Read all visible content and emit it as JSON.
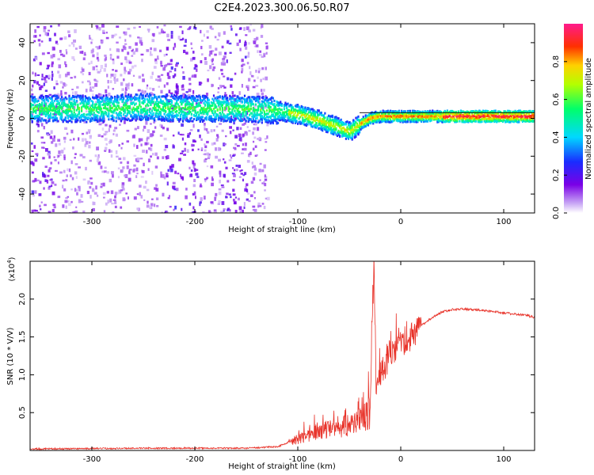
{
  "title": "C2E4.2023.300.06.50.R07",
  "chart_data": [
    {
      "type": "heatmap",
      "xlabel": "Height of straight line (km)",
      "ylabel": "Frequency (Hz)",
      "xlim": [
        -360,
        130
      ],
      "ylim": [
        -50,
        50
      ],
      "xticks": [
        -300,
        -200,
        -100,
        0,
        100
      ],
      "xtick_labels": [
        "-300",
        "-200",
        "-100",
        "0",
        "100"
      ],
      "yticks": [
        40,
        20,
        0,
        -20,
        -40
      ],
      "ytick_labels": [
        "40",
        "20",
        "0",
        "-20",
        "-40"
      ],
      "colorbar": {
        "label": "Normalized spectral amplitude",
        "range": [
          0,
          1
        ],
        "ticks": [
          0.0,
          0.2,
          0.4,
          0.6,
          0.8
        ],
        "tick_labels": [
          "0.0",
          "0.2",
          "0.4",
          "0.6",
          "0.8"
        ],
        "colormap": "rainbow (white-violet-blue-cyan-green-yellow-red-pink)"
      },
      "ridge_center_hz": {
        "x": [
          -360,
          -300,
          -250,
          -200,
          -150,
          -120,
          -100,
          -80,
          -60,
          -50,
          -40,
          -30,
          -20,
          0,
          50,
          100,
          130
        ],
        "y": [
          5,
          5,
          6,
          5,
          5,
          4,
          2,
          -1,
          -5,
          -7,
          -3,
          0,
          1,
          1,
          1,
          1,
          1
        ]
      }
    },
    {
      "type": "line",
      "xlabel": "Height of straight line (km)",
      "ylabel": "SNR (10 * V/V)",
      "yscale_label": "(x10",
      "yscale_exp": "4",
      "yscale_close": ")",
      "xlim": [
        -360,
        130
      ],
      "ylim": [
        0,
        2.5
      ],
      "xticks": [
        -300,
        -200,
        -100,
        0,
        100
      ],
      "xtick_labels": [
        "-300",
        "-200",
        "-100",
        "0",
        "100"
      ],
      "yticks": [
        0.5,
        1.0,
        1.5,
        2.0
      ],
      "ytick_labels": [
        "0.5",
        "1.0",
        "1.5",
        "2.0"
      ],
      "series": [
        {
          "name": "SNR",
          "color": "#e8332a",
          "x": [
            -360,
            -250,
            -150,
            -120,
            -100,
            -80,
            -60,
            -50,
            -40,
            -30,
            -26,
            -24,
            -22,
            -15,
            -10,
            0,
            10,
            20,
            30,
            40,
            50,
            60,
            80,
            100,
            110,
            120,
            130
          ],
          "y": [
            0.02,
            0.03,
            0.03,
            0.05,
            0.15,
            0.25,
            0.3,
            0.35,
            0.4,
            0.5,
            2.5,
            0.9,
            1.0,
            1.1,
            1.3,
            1.35,
            1.5,
            1.65,
            1.75,
            1.83,
            1.86,
            1.87,
            1.85,
            1.82,
            1.8,
            1.79,
            1.76
          ]
        }
      ]
    }
  ],
  "colors": {
    "line": "#e8332a"
  }
}
